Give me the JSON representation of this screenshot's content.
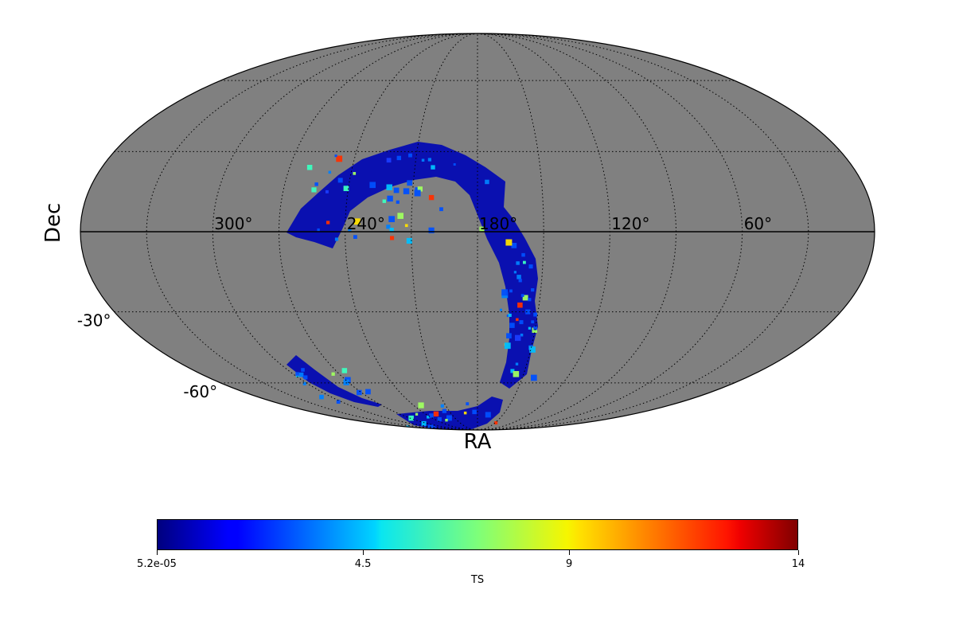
{
  "map": {
    "projection": "mollweide",
    "background_color": "#808080",
    "graticule": true,
    "ra_labels": [
      "300°",
      "240°",
      "180°",
      "120°",
      "60°"
    ],
    "ra_label_values": [
      300,
      240,
      180,
      120,
      60
    ],
    "dec_labels": [
      "-30°",
      "-60°"
    ],
    "dec_label_values": [
      -30,
      -60
    ],
    "xlabel": "RA",
    "ylabel": "Dec"
  },
  "colorbar": {
    "label": "TS",
    "colormap": "jet",
    "ticks": [
      "5.2e-05",
      "4.5",
      "9",
      "14"
    ],
    "tick_values": [
      5.2e-05,
      4.5,
      9,
      14
    ],
    "range": [
      5.2e-05,
      14
    ]
  }
}
